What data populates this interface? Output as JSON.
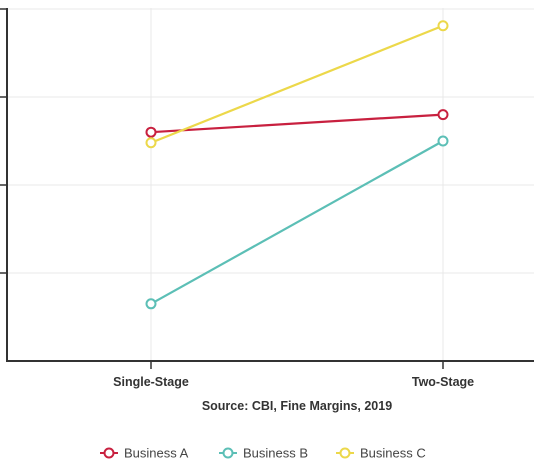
{
  "chart_data": {
    "type": "line",
    "categories": [
      "Single-Stage",
      "Two-Stage"
    ],
    "ylim": [
      0,
      4
    ],
    "grid": true,
    "legend_position": "bottom",
    "xlabel": "Source: CBI, Fine Margins, 2019",
    "series": [
      {
        "name": "Business A",
        "values": [
          2.6,
          2.8
        ],
        "color": "#c8203f"
      },
      {
        "name": "Business B",
        "values": [
          0.65,
          2.5
        ],
        "color": "#5cbfb6"
      },
      {
        "name": "Business C",
        "values": [
          2.48,
          3.81
        ],
        "color": "#ecd84a"
      }
    ]
  }
}
